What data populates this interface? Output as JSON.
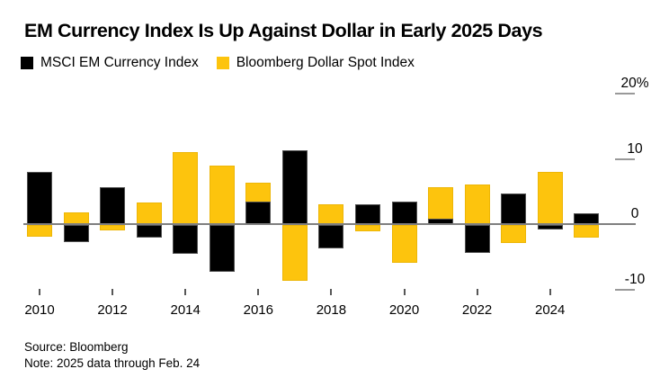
{
  "header": {
    "title": "EM Currency Index Is Up Against Dollar in Early 2025 Days"
  },
  "footer": {
    "source": "Source: Bloomberg",
    "note": "Note: 2025 data through Feb. 24"
  },
  "chart_data": {
    "type": "bar",
    "title": "EM Currency Index Is Up Against Dollar in Early 2025 Days",
    "bar_style": "overlapping",
    "unit": "%",
    "grid": false,
    "legend_position": "top-left",
    "axis_color": "#7f7f7f",
    "categories": [
      2010,
      2011,
      2012,
      2013,
      2014,
      2015,
      2016,
      2017,
      2018,
      2019,
      2020,
      2021,
      2022,
      2023,
      2024,
      2025
    ],
    "series": [
      {
        "name": "MSCI EM Currency Index",
        "color": "#000000",
        "values": [
          8.0,
          -2.7,
          5.6,
          -2.0,
          -4.5,
          -7.2,
          3.4,
          11.3,
          -3.6,
          3.1,
          3.4,
          0.8,
          -4.4,
          4.7,
          -0.8,
          1.6
        ]
      },
      {
        "name": "Bloomberg Dollar Spot Index",
        "color": "#fdc40d",
        "values": [
          -1.9,
          1.8,
          -0.9,
          3.3,
          11.0,
          9.0,
          6.3,
          -8.6,
          3.1,
          -1.0,
          -5.8,
          5.7,
          6.1,
          -2.8,
          8.0,
          -2.0
        ]
      }
    ],
    "y_axis": {
      "side": "right",
      "ticks": [
        20,
        10,
        0,
        -10
      ],
      "tick_labels": [
        "20%",
        "10",
        "0",
        "-10"
      ],
      "range": [
        -12,
        22
      ]
    },
    "x_tick_labels": [
      "2010",
      "2012",
      "2014",
      "2016",
      "2018",
      "2020",
      "2022",
      "2024"
    ]
  }
}
